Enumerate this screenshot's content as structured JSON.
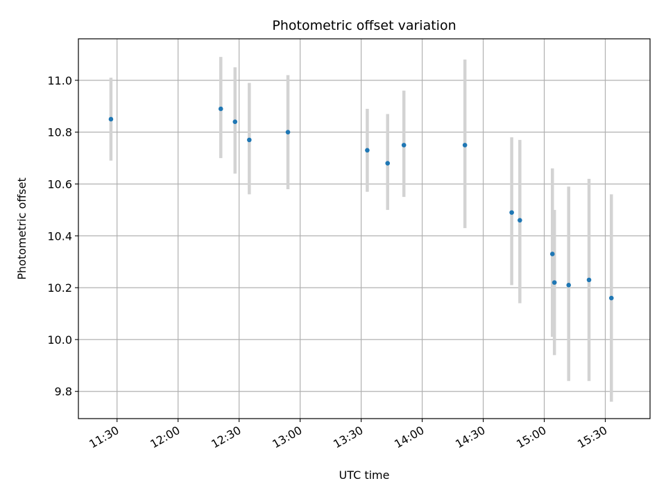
{
  "chart_data": {
    "type": "scatter",
    "title": "Photometric offset variation",
    "xlabel": "UTC time",
    "ylabel": "Photometric offset",
    "x_ticks": [
      "11:30",
      "12:00",
      "12:30",
      "13:00",
      "13:30",
      "14:00",
      "14:30",
      "15:00",
      "15:30"
    ],
    "y_ticks": [
      "9.8",
      "10.0",
      "10.2",
      "10.4",
      "10.6",
      "10.8",
      "11.0"
    ],
    "xlim": [
      "11:11",
      "15:52"
    ],
    "ylim": [
      9.695,
      11.16
    ],
    "grid": true,
    "series": [
      {
        "points": [
          {
            "time": "11:27",
            "y": 10.85,
            "err_low": 10.69,
            "err_high": 11.01
          },
          {
            "time": "12:21",
            "y": 10.89,
            "err_low": 10.7,
            "err_high": 11.09
          },
          {
            "time": "12:28",
            "y": 10.84,
            "err_low": 10.64,
            "err_high": 11.05
          },
          {
            "time": "12:35",
            "y": 10.77,
            "err_low": 10.56,
            "err_high": 10.99
          },
          {
            "time": "12:54",
            "y": 10.8,
            "err_low": 10.58,
            "err_high": 11.02
          },
          {
            "time": "13:33",
            "y": 10.73,
            "err_low": 10.57,
            "err_high": 10.89
          },
          {
            "time": "13:43",
            "y": 10.68,
            "err_low": 10.5,
            "err_high": 10.87
          },
          {
            "time": "13:51",
            "y": 10.75,
            "err_low": 10.55,
            "err_high": 10.96
          },
          {
            "time": "14:21",
            "y": 10.75,
            "err_low": 10.43,
            "err_high": 11.08
          },
          {
            "time": "14:44",
            "y": 10.49,
            "err_low": 10.21,
            "err_high": 10.78
          },
          {
            "time": "14:48",
            "y": 10.46,
            "err_low": 10.14,
            "err_high": 10.77
          },
          {
            "time": "15:04",
            "y": 10.33,
            "err_low": 10.01,
            "err_high": 10.66
          },
          {
            "time": "15:05",
            "y": 10.22,
            "err_low": 9.94,
            "err_high": 10.5
          },
          {
            "time": "15:12",
            "y": 10.21,
            "err_low": 9.84,
            "err_high": 10.59
          },
          {
            "time": "15:22",
            "y": 10.23,
            "err_low": 9.84,
            "err_high": 10.62
          },
          {
            "time": "15:33",
            "y": 10.16,
            "err_low": 9.76,
            "err_high": 10.56
          }
        ]
      }
    ],
    "colors": {
      "point": "#1f77b4",
      "errorbar": "#d3d3d3",
      "grid": "#b0b0b0",
      "axes": "#000000"
    }
  }
}
